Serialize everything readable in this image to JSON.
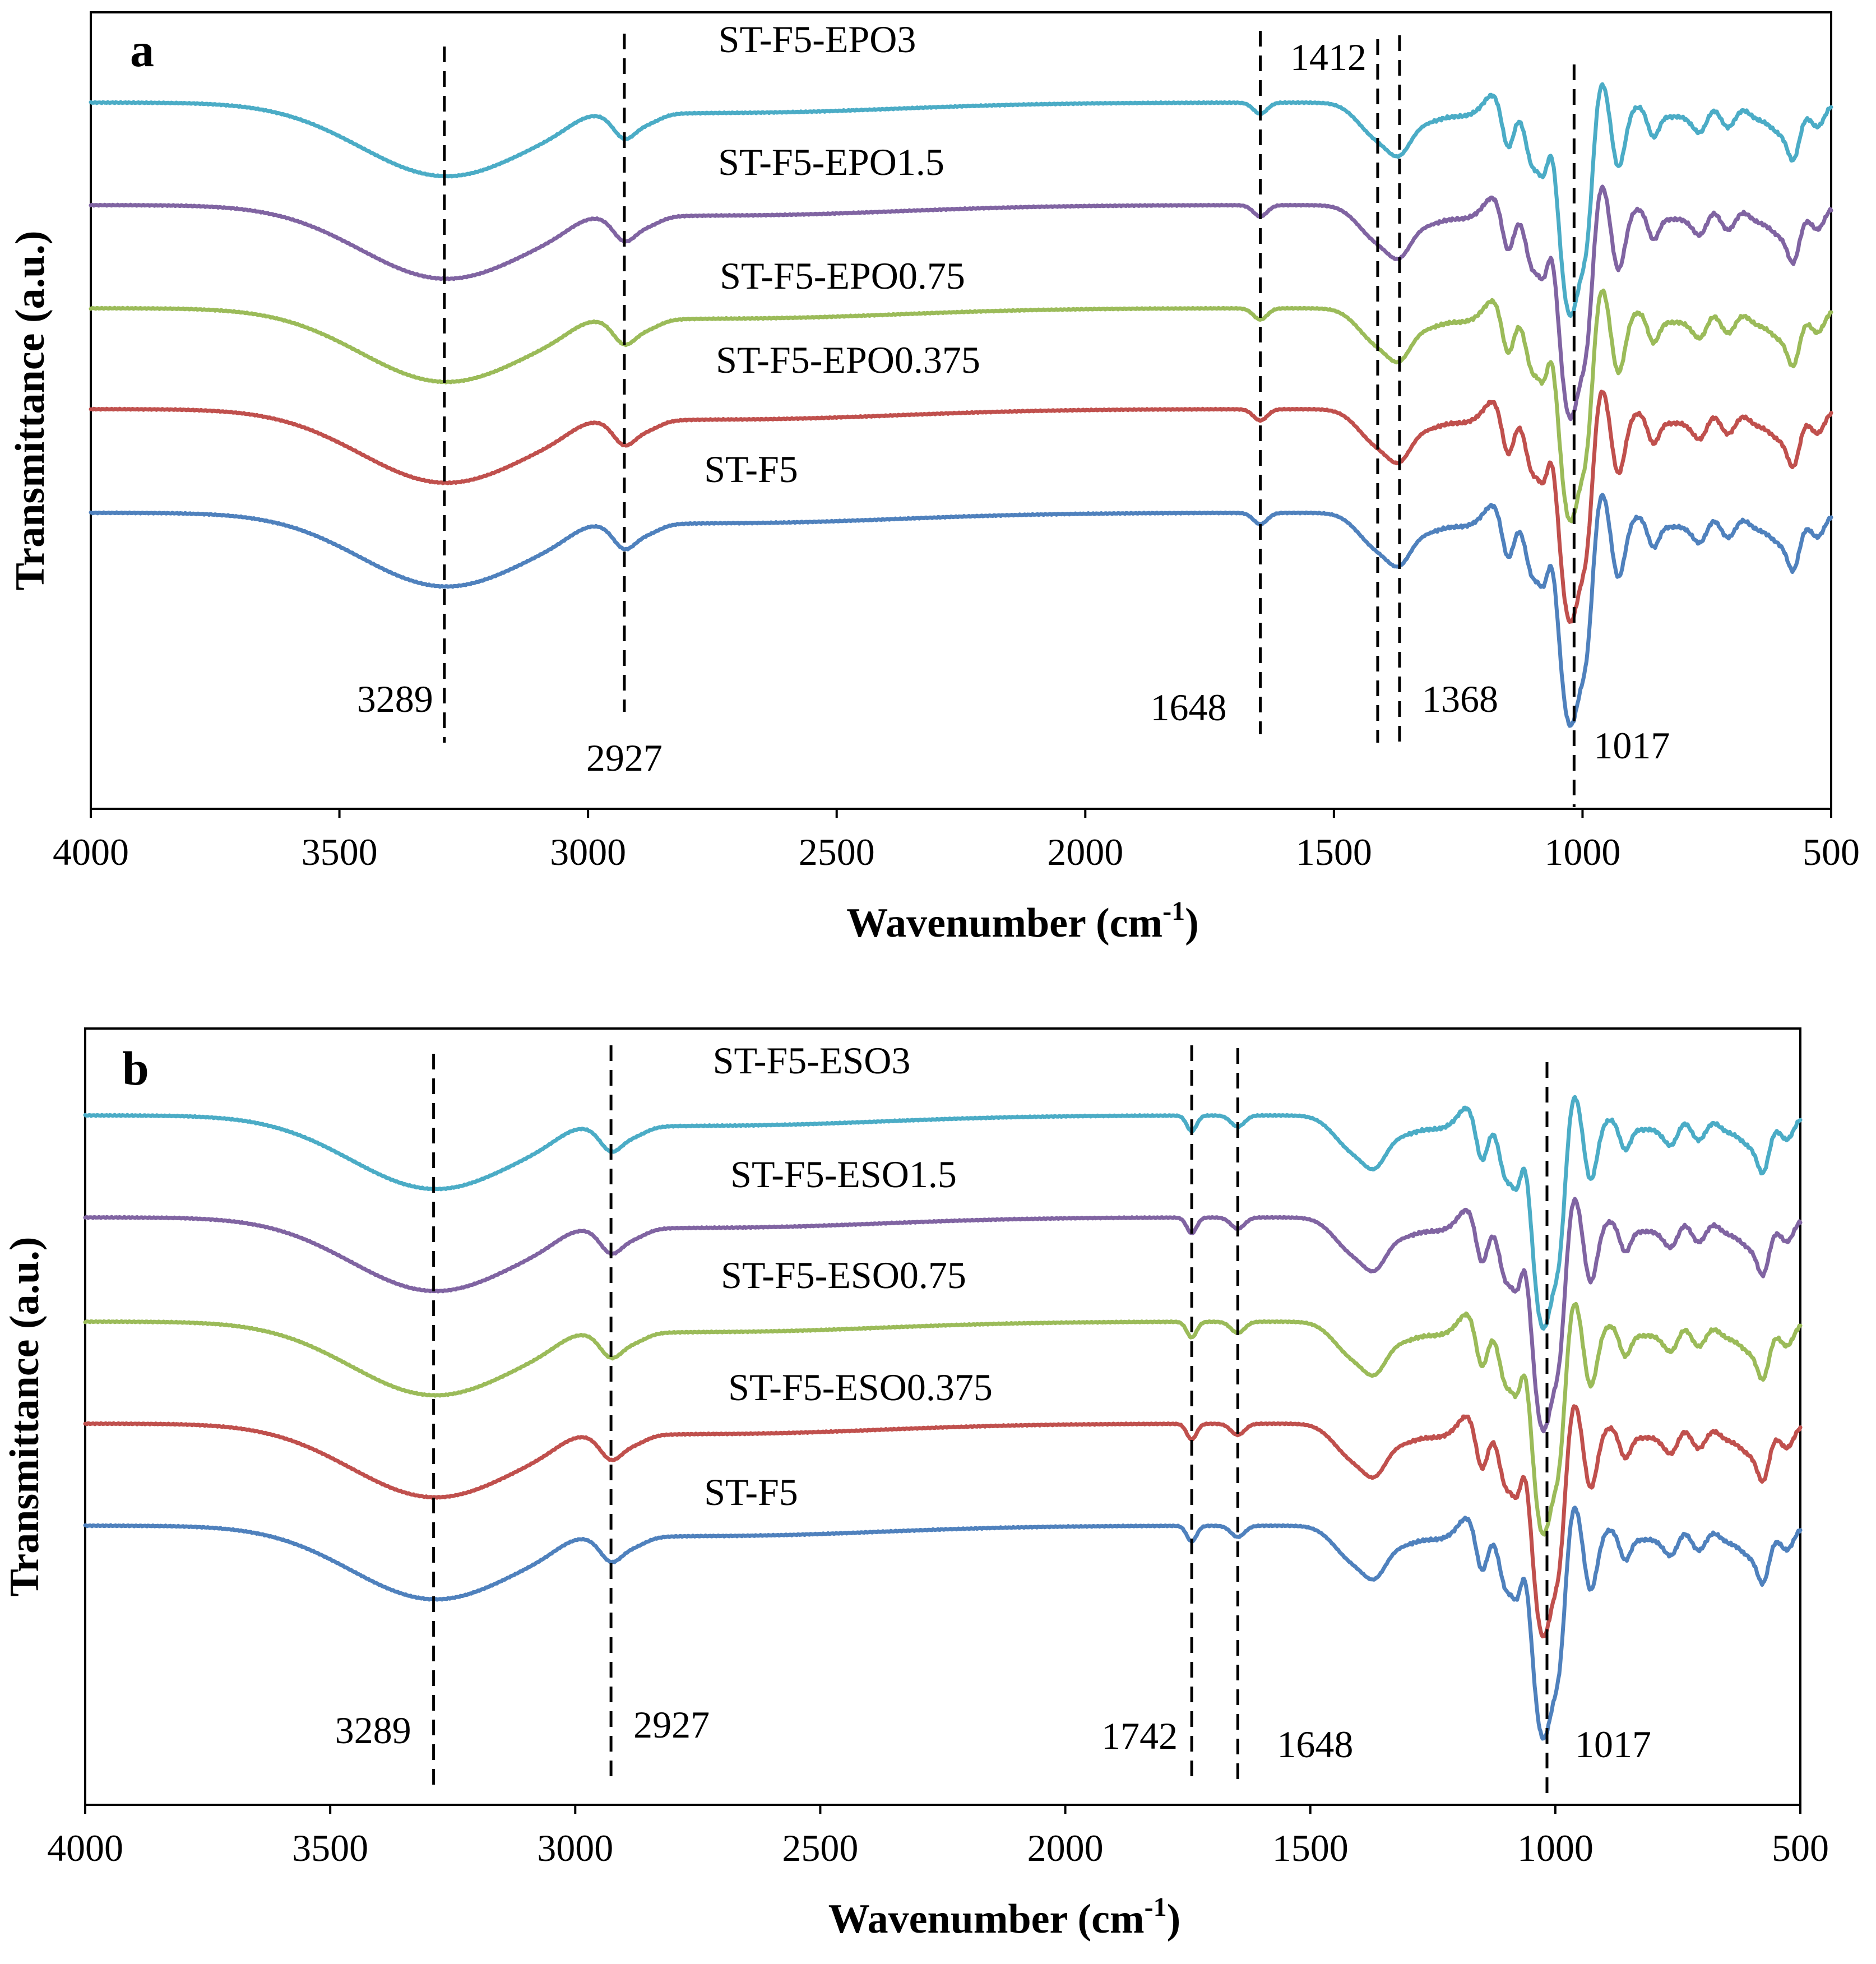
{
  "chart_data": [
    {
      "type": "line",
      "panel_label": "a",
      "xlabel_main": "Wavenumber (cm",
      "xlabel_sup": "-1",
      "xlabel_close": ")",
      "ylabel": "Transmittance (a.u.)",
      "xlim": [
        4000,
        500
      ],
      "x_ticks": [
        "4000",
        "3500",
        "3000",
        "2500",
        "2000",
        "1500",
        "1000",
        "500"
      ],
      "x_tick_values": [
        4000,
        3500,
        3000,
        2500,
        2000,
        1500,
        1000,
        500
      ],
      "y_ticks_shown": false,
      "series": [
        {
          "name": "ST-F5-EPO3",
          "color": "#4BACC6",
          "offset": 4
        },
        {
          "name": "ST-F5-EPO1.5",
          "color": "#8064A2",
          "offset": 3
        },
        {
          "name": "ST-F5-EPO0.75",
          "color": "#9BBB59",
          "offset": 2
        },
        {
          "name": "ST-F5-EPO0.375",
          "color": "#C0504D",
          "offset": 1
        },
        {
          "name": "ST-F5",
          "color": "#4F81BD",
          "offset": 0
        }
      ],
      "peak_markers": [
        {
          "wavenumber": 3289,
          "label": "3289"
        },
        {
          "wavenumber": 2927,
          "label": "2927"
        },
        {
          "wavenumber": 1648,
          "label": "1648"
        },
        {
          "wavenumber": 1412,
          "label": "1412"
        },
        {
          "wavenumber": 1368,
          "label": "1368"
        },
        {
          "wavenumber": 1017,
          "label": "1017"
        }
      ]
    },
    {
      "type": "line",
      "panel_label": "b",
      "xlabel_main": "Wavenumber (cm",
      "xlabel_sup": "-1",
      "xlabel_close": ")",
      "ylabel": "Transmittance (a.u.)",
      "xlim": [
        4000,
        500
      ],
      "x_ticks": [
        "4000",
        "3500",
        "3000",
        "2500",
        "2000",
        "1500",
        "1000",
        "500"
      ],
      "x_tick_values": [
        4000,
        3500,
        3000,
        2500,
        2000,
        1500,
        1000,
        500
      ],
      "y_ticks_shown": false,
      "series": [
        {
          "name": "ST-F5-ESO3",
          "color": "#4BACC6",
          "offset": 4
        },
        {
          "name": "ST-F5-ESO1.5",
          "color": "#8064A2",
          "offset": 3
        },
        {
          "name": "ST-F5-ESO0.75",
          "color": "#9BBB59",
          "offset": 2
        },
        {
          "name": "ST-F5-ESO0.375",
          "color": "#C0504D",
          "offset": 1
        },
        {
          "name": "ST-F5",
          "color": "#4F81BD",
          "offset": 0
        }
      ],
      "peak_markers": [
        {
          "wavenumber": 3289,
          "label": "3289"
        },
        {
          "wavenumber": 2927,
          "label": "2927"
        },
        {
          "wavenumber": 1742,
          "label": "1742"
        },
        {
          "wavenumber": 1648,
          "label": "1648"
        },
        {
          "wavenumber": 1017,
          "label": "1017"
        }
      ]
    }
  ]
}
